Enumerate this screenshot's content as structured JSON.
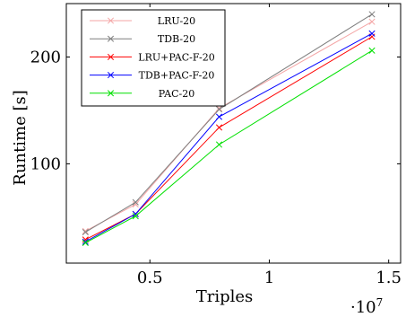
{
  "chart_data": {
    "type": "line",
    "xlabel": "Triples",
    "ylabel": "Runtime [s]",
    "x_multiplier_label": "·10",
    "x_multiplier_exponent": "7",
    "xlim": [
      1500000,
      15500000
    ],
    "ylim": [
      7,
      250
    ],
    "x_ticks": [
      {
        "value": 5000000,
        "label": "0.5"
      },
      {
        "value": 10000000,
        "label": "1"
      },
      {
        "value": 15000000,
        "label": "1.5"
      }
    ],
    "y_ticks": [
      {
        "value": 100,
        "label": "100"
      },
      {
        "value": 200,
        "label": "200"
      }
    ],
    "legend_position": "top-left",
    "grid": false,
    "x": [
      2300000,
      4400000,
      7900000,
      14300000
    ],
    "series": [
      {
        "name": "LRU-20",
        "color": "#f4a6a6",
        "values": [
          37,
          62,
          152,
          233
        ]
      },
      {
        "name": "TDB-20",
        "color": "#7f7f7f",
        "values": [
          36,
          64,
          151,
          240
        ]
      },
      {
        "name": "LRU+PAC-F-20",
        "color": "#ff0000",
        "values": [
          29,
          53,
          134,
          219
        ]
      },
      {
        "name": "TDB+PAC-F-20",
        "color": "#0000ff",
        "values": [
          27,
          53,
          144,
          222
        ]
      },
      {
        "name": "PAC-20",
        "color": "#00e000",
        "values": [
          26,
          51,
          118,
          206
        ]
      }
    ]
  }
}
